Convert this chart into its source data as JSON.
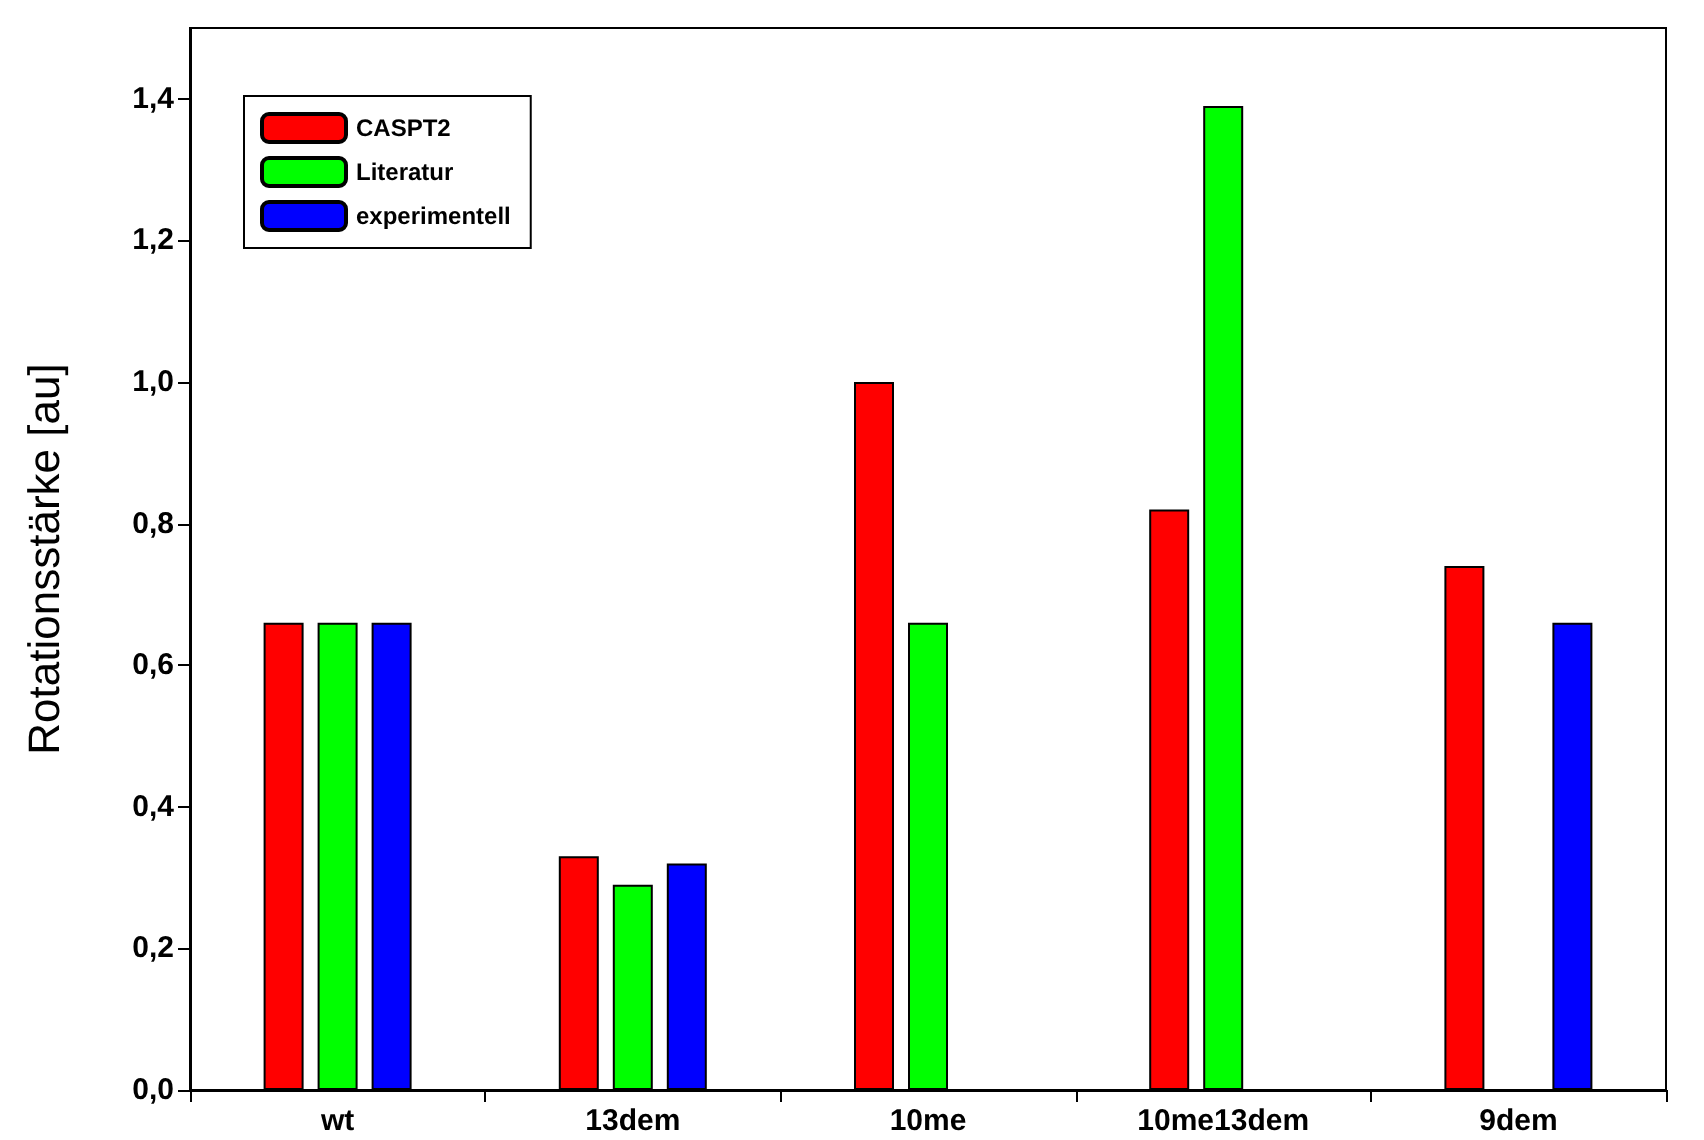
{
  "chart_data": {
    "type": "bar",
    "ylabel": "Rotationsstärke [au]",
    "categories": [
      "wt",
      "13dem",
      "10me",
      "10me13dem",
      "9dem"
    ],
    "series": [
      {
        "name": "CASPT2",
        "color": "#ff0000",
        "values": [
          0.66,
          0.33,
          1.0,
          0.82,
          0.74
        ]
      },
      {
        "name": "Literatur",
        "color": "#00ff00",
        "values": [
          0.66,
          0.29,
          0.66,
          1.39,
          null
        ]
      },
      {
        "name": "experimentell",
        "color": "#0000ff",
        "values": [
          0.66,
          0.32,
          null,
          null,
          0.66
        ]
      }
    ],
    "ylim": [
      0,
      1.5
    ],
    "yticks": [
      {
        "value": 0,
        "label": "0,0"
      },
      {
        "value": 0.2,
        "label": "0,2"
      },
      {
        "value": 0.4,
        "label": "0,4"
      },
      {
        "value": 0.6,
        "label": "0,6"
      },
      {
        "value": 0.8,
        "label": "0,8"
      },
      {
        "value": 1.0,
        "label": "1,0"
      },
      {
        "value": 1.2,
        "label": "1,2"
      },
      {
        "value": 1.4,
        "label": "1,4"
      }
    ],
    "grid": false,
    "legend": "top left"
  }
}
